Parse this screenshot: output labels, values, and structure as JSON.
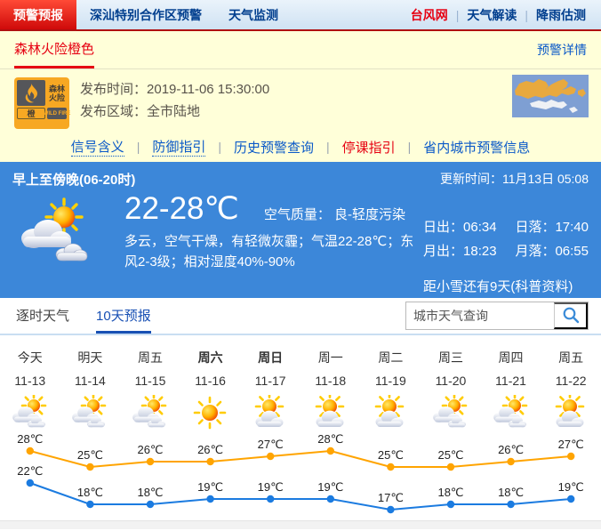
{
  "separator": "|",
  "topnav": {
    "tabs": [
      {
        "label": "预警预报",
        "active": true
      },
      {
        "label": "深汕特别合作区预警",
        "active": false
      },
      {
        "label": "天气监测",
        "active": false
      }
    ],
    "right_links": [
      {
        "label": "台风网",
        "accent": true
      },
      {
        "label": "天气解读",
        "accent": false
      },
      {
        "label": "降雨估测",
        "accent": false
      }
    ]
  },
  "warning": {
    "tab_label": "森林火险橙色",
    "details_label": "预警详情",
    "badge": {
      "cn1": "森林",
      "cn2": "火险",
      "level": "橙",
      "en": "WILD FIRE"
    },
    "publish_time_label": "发布时间：",
    "publish_time": "2019-11-06 15:30:00",
    "publish_area_label": "发布区域：",
    "publish_area": "全市陆地",
    "links": [
      {
        "label": "信号含义",
        "style": "dotted"
      },
      {
        "label": "防御指引",
        "style": "dotted"
      },
      {
        "label": "历史预警查询",
        "style": "plain"
      },
      {
        "label": "停课指引",
        "style": "accent"
      },
      {
        "label": "省内城市预警信息",
        "style": "plain"
      }
    ]
  },
  "current": {
    "period": "早上至傍晚(06-20时)",
    "update_label": "更新时间：",
    "update_time": "11月13日 05:08",
    "temp_range": "22-28℃",
    "air_quality_label": "空气质量：",
    "air_quality": "良-轻度污染",
    "description": "多云，空气干燥，有轻微灰霾；气温22-28℃；东风2-3级；相对湿度40%-90%",
    "sunrise_label": "日出：",
    "sunrise": "06:34",
    "sunset_label": "日落：",
    "sunset": "17:40",
    "moonrise_label": "月出：",
    "moonrise": "18:23",
    "moonset_label": "月落：",
    "moonset": "06:55",
    "solar_term": "距小雪还有9天(科普资料)"
  },
  "forecast_tabs": {
    "hourly": "逐时天气",
    "ten_day": "10天预报"
  },
  "search": {
    "placeholder": "城市天气查询"
  },
  "chart_data": {
    "type": "line",
    "categories_day": [
      "今天",
      "明天",
      "周五",
      "周六",
      "周日",
      "周一",
      "周二",
      "周三",
      "周四",
      "周五"
    ],
    "bold_day_indices": [
      3,
      4
    ],
    "categories_date": [
      "11-13",
      "11-14",
      "11-15",
      "11-16",
      "11-17",
      "11-18",
      "11-19",
      "11-20",
      "11-21",
      "11-22"
    ],
    "icons": [
      "cloudy",
      "cloudy",
      "cloudy",
      "sunny",
      "partly",
      "partly",
      "partly",
      "cloudy",
      "cloudy",
      "partly"
    ],
    "series": [
      {
        "name": "最高气温",
        "color": "#ffa400",
        "values": [
          28,
          25,
          26,
          26,
          27,
          28,
          25,
          25,
          26,
          27
        ]
      },
      {
        "name": "最低气温",
        "color": "#1b7be0",
        "values": [
          22,
          18,
          18,
          19,
          19,
          19,
          17,
          18,
          18,
          19
        ]
      }
    ],
    "unit": "℃",
    "ylim": [
      15,
      30
    ],
    "grid": false,
    "legend": "none"
  },
  "colors": {
    "accent_red": "#e60012",
    "link_blue": "#0a59c8",
    "section_blue": "#3c87d9",
    "warning_orange": "#f7a823",
    "high_line": "#ffa400",
    "low_line": "#1b7be0"
  }
}
